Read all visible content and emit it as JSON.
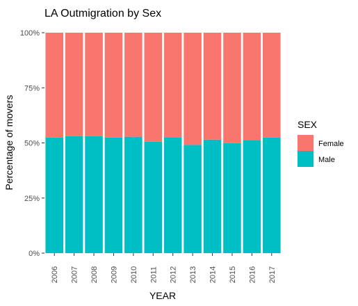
{
  "chart_data": {
    "type": "bar",
    "stacked": true,
    "title": "LA Outmigration by Sex",
    "xlabel": "YEAR",
    "ylabel": "Percentage of movers",
    "categories": [
      "2006",
      "2007",
      "2008",
      "2009",
      "2010",
      "2011",
      "2012",
      "2013",
      "2014",
      "2015",
      "2016",
      "2017"
    ],
    "y_ticks": [
      "0%",
      "25%",
      "50%",
      "75%",
      "100%"
    ],
    "ylim": [
      0,
      100
    ],
    "grid": false,
    "legend": {
      "title": "SEX",
      "position": "right"
    },
    "series": [
      {
        "name": "Male",
        "color": "#00BFC4",
        "values": [
          52.4,
          53.1,
          53.1,
          52.4,
          52.8,
          50.5,
          52.6,
          49.1,
          51.5,
          49.9,
          51.3,
          52.4
        ]
      },
      {
        "name": "Female",
        "color": "#F8766D",
        "values": [
          47.6,
          46.9,
          46.9,
          47.6,
          47.2,
          49.5,
          47.4,
          50.9,
          48.5,
          50.1,
          48.7,
          47.6
        ]
      }
    ]
  }
}
